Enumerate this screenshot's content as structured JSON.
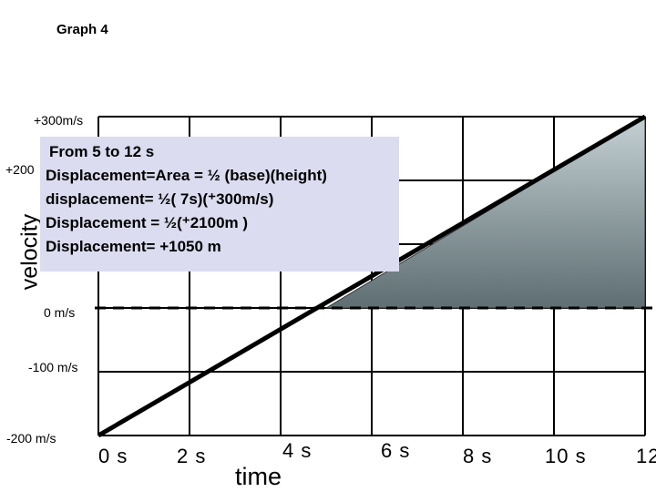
{
  "title": "Graph 4",
  "chart_data": {
    "type": "line",
    "title": "Graph 4",
    "xlabel": "time",
    "ylabel": "velocity",
    "x_ticks": [
      "0 s",
      "2 s",
      "4 s",
      "6 s",
      "8 s",
      "10 s",
      "12"
    ],
    "y_ticks": [
      "+300m/s",
      "+200",
      "0 m/s",
      "-100 m/s",
      "-200 m/s"
    ],
    "xlim": [
      0,
      12
    ],
    "ylim": [
      -200,
      300
    ],
    "grid": true,
    "series": [
      {
        "x": [
          0,
          12
        ],
        "y": [
          -200,
          300
        ]
      }
    ],
    "zero_line": 0,
    "shaded_area": {
      "x_start": 5,
      "x_end": 12,
      "y_base": 0,
      "y_top": 300
    },
    "annotation": [
      "From 5 to 12 s",
      "Displacement=Area = ½ (base)(height)",
      "displacement= ½( 7s)(⁺300m/s)",
      "Displacement = ½(⁺2100m )",
      "Displacement= +1050 m"
    ]
  }
}
